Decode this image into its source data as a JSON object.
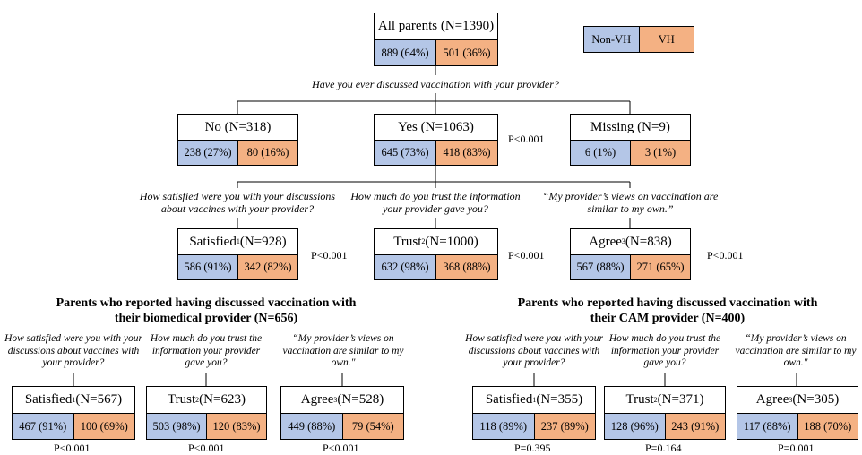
{
  "legend": {
    "a": "Non-VH",
    "b": "VH"
  },
  "root": {
    "label": "All parents (N=1390)",
    "a": "889 (64%)",
    "b": "501 (36%)"
  },
  "q_discussed": "Have you ever discussed vaccination with your provider?",
  "level1": {
    "no": {
      "label": "No (N=318)",
      "a": "238 (27%)",
      "b": "80 (16%)"
    },
    "yes": {
      "label": "Yes (N=1063)",
      "a": "645 (73%)",
      "b": "418 (83%)"
    },
    "missing": {
      "label": "Missing (N=9)",
      "a": "6 (1%)",
      "b": "3 (1%)"
    },
    "p": "P<0.001"
  },
  "questions": {
    "satisfied": "How satisfied were you with your discussions about vaccines with your provider?",
    "trust": "How much do you trust the information your provider gave you?",
    "agree": "“My provider’s views on vaccination are similar to my own.”"
  },
  "level2": {
    "satisfied": {
      "label": "Satisfied",
      "sup": "1",
      "n": " (N=928)",
      "a": "586 (91%)",
      "b": "342 (82%)",
      "p": "P<0.001"
    },
    "trust": {
      "label": "Trust",
      "sup": "2",
      "n": " (N=1000)",
      "a": "632 (98%)",
      "b": "368 (88%)",
      "p": "P<0.001"
    },
    "agree": {
      "label": "Agree",
      "sup": "3",
      "n": " (N=838)",
      "a": "567 (88%)",
      "b": "271 (65%)",
      "p": "P<0.001"
    }
  },
  "biomedical": {
    "title": "Parents who reported having discussed vaccination with their biomedical provider (N=656)",
    "q_satisfied": "How satisfied were you with your discussions about vaccines with your provider?",
    "q_trust": "How much do you trust the information your provider gave you?",
    "q_agree": "“My provider’s views on vaccination are similar to my own.\"",
    "satisfied": {
      "label": "Satisfied",
      "sup": "1",
      "n": " (N=567)",
      "a": "467 (91%)",
      "b": "100 (69%)",
      "p": "P<0.001"
    },
    "trust": {
      "label": "Trust",
      "sup": "2",
      "n": " (N=623)",
      "a": "503 (98%)",
      "b": "120 (83%)",
      "p": "P<0.001"
    },
    "agree": {
      "label": "Agree",
      "sup": "3",
      "n": " (N=528)",
      "a": "449 (88%)",
      "b": "79 (54%)",
      "p": "P<0.001"
    }
  },
  "cam": {
    "title": "Parents who reported having discussed vaccination with their CAM provider (N=400)",
    "q_satisfied": "How satisfied were you with your discussions about vaccines with your provider?",
    "q_trust": "How much do you trust the information your provider gave you?",
    "q_agree": "“My provider’s views on vaccination are similar to my own.\"",
    "satisfied": {
      "label": "Satisfied",
      "sup": "1",
      "n": " (N=355)",
      "a": "118 (89%)",
      "b": "237 (89%)",
      "p": "P=0.395"
    },
    "trust": {
      "label": "Trust",
      "sup": "2",
      "n": " (N=371)",
      "a": "128 (96%)",
      "b": "243 (91%)",
      "p": "P=0.164"
    },
    "agree": {
      "label": "Agree",
      "sup": "3",
      "n": " (N=305)",
      "a": "117 (88%)",
      "b": "188 (70%)",
      "p": "P=0.001"
    }
  }
}
